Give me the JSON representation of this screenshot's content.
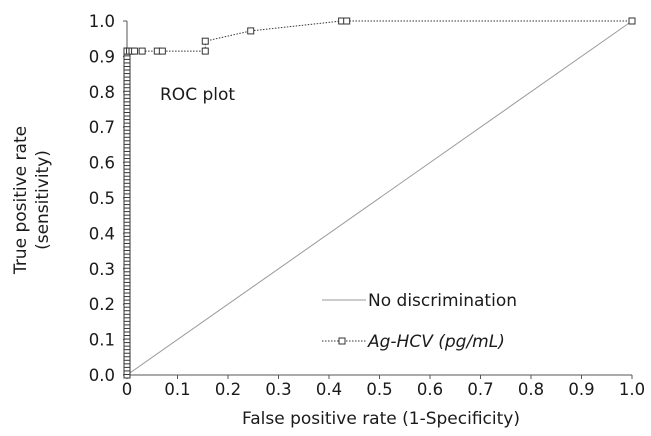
{
  "chart_data": {
    "type": "line",
    "annotation": "ROC plot",
    "xlabel": "False positive rate (1-Specificity)",
    "ylabel_line1": "True positive rate",
    "ylabel_line2": "(sensitivity)",
    "xlim": [
      0,
      1
    ],
    "ylim": [
      0,
      1
    ],
    "x_ticks": [
      "0",
      "0.1",
      "0.2",
      "0.3",
      "0.4",
      "0.5",
      "0.6",
      "0.7",
      "0.8",
      "0.9",
      "1.0"
    ],
    "y_ticks": [
      "0.0",
      "0.1",
      "0.2",
      "0.3",
      "0.4",
      "0.5",
      "0.6",
      "0.7",
      "0.8",
      "0.9",
      "1.0"
    ],
    "grid": false,
    "legend_position": "bottom-right",
    "series": [
      {
        "name": "No discrimination",
        "style": "solid",
        "color": "#9a9a9a",
        "markers": false,
        "x": [
          0,
          1
        ],
        "y": [
          0,
          1
        ]
      },
      {
        "name": "Ag-HCV (pg/mL)",
        "style": "dotted",
        "color": "#333333",
        "markers": true,
        "marker": "square",
        "x": [
          0,
          0,
          0,
          0,
          0,
          0,
          0,
          0,
          0,
          0,
          0,
          0,
          0,
          0,
          0,
          0,
          0,
          0,
          0,
          0,
          0,
          0,
          0,
          0,
          0,
          0,
          0,
          0,
          0,
          0,
          0,
          0,
          0,
          0,
          0,
          0,
          0,
          0,
          0,
          0,
          0,
          0,
          0,
          0,
          0,
          0,
          0,
          0,
          0,
          0,
          0,
          0,
          0,
          0,
          0,
          0,
          0,
          0,
          0,
          0,
          0,
          0,
          0,
          0,
          0,
          0,
          0,
          0,
          0,
          0,
          0,
          0,
          0,
          0,
          0,
          0,
          0,
          0,
          0,
          0,
          0,
          0,
          0,
          0,
          0,
          0,
          0,
          0,
          0,
          0,
          0,
          0,
          0,
          0,
          0.005,
          0.01,
          0.015,
          0.03,
          0.06,
          0.07,
          0.155,
          0.155,
          0.245,
          0.425,
          0.435,
          1.0
        ],
        "y": [
          0.0,
          0.01,
          0.02,
          0.03,
          0.04,
          0.05,
          0.06,
          0.07,
          0.08,
          0.09,
          0.1,
          0.11,
          0.12,
          0.13,
          0.14,
          0.15,
          0.16,
          0.17,
          0.18,
          0.19,
          0.2,
          0.21,
          0.22,
          0.23,
          0.24,
          0.25,
          0.26,
          0.27,
          0.28,
          0.29,
          0.3,
          0.31,
          0.32,
          0.33,
          0.34,
          0.35,
          0.36,
          0.37,
          0.38,
          0.39,
          0.4,
          0.41,
          0.42,
          0.43,
          0.44,
          0.45,
          0.46,
          0.47,
          0.48,
          0.49,
          0.5,
          0.51,
          0.52,
          0.53,
          0.54,
          0.55,
          0.56,
          0.57,
          0.58,
          0.59,
          0.6,
          0.61,
          0.62,
          0.63,
          0.64,
          0.65,
          0.66,
          0.67,
          0.68,
          0.69,
          0.7,
          0.71,
          0.72,
          0.73,
          0.74,
          0.75,
          0.76,
          0.77,
          0.78,
          0.79,
          0.8,
          0.81,
          0.82,
          0.83,
          0.84,
          0.85,
          0.86,
          0.87,
          0.88,
          0.89,
          0.9,
          0.91,
          0.915,
          0.915,
          0.915,
          0.915,
          0.915,
          0.915,
          0.915,
          0.915,
          0.915,
          0.943,
          0.972,
          1.0,
          1.0,
          1.0
        ]
      }
    ]
  }
}
